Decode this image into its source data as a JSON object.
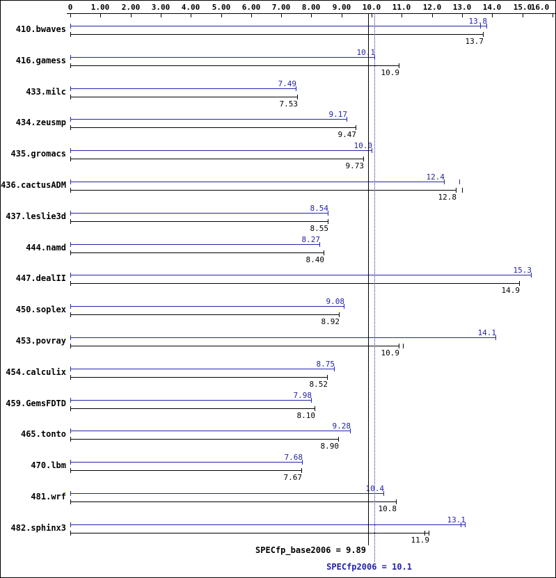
{
  "chart_data": {
    "type": "bar",
    "orientation": "horizontal",
    "title": "",
    "xlabel": "",
    "ylabel": "",
    "xlim": [
      0,
      16
    ],
    "grid": false,
    "series_colors": {
      "peak": "#2222aa",
      "base": "#000000"
    },
    "axis_ticks": [
      {
        "value": 0,
        "label": "0"
      },
      {
        "value": 1,
        "label": "1.00"
      },
      {
        "value": 2,
        "label": "2.00"
      },
      {
        "value": 3,
        "label": "3.00"
      },
      {
        "value": 4,
        "label": "4.00"
      },
      {
        "value": 5,
        "label": "5.00"
      },
      {
        "value": 6,
        "label": "6.00"
      },
      {
        "value": 7,
        "label": "7.00"
      },
      {
        "value": 8,
        "label": "8.00"
      },
      {
        "value": 9,
        "label": "9.00"
      },
      {
        "value": 10,
        "label": "10.0"
      },
      {
        "value": 11,
        "label": "11.0"
      },
      {
        "value": 12,
        "label": "12.0"
      },
      {
        "value": 13,
        "label": "13.0"
      },
      {
        "value": 14,
        "label": "14.0"
      },
      {
        "value": 15,
        "label": "15.0"
      },
      {
        "value": 16,
        "label": "16.0"
      }
    ],
    "benchmarks": [
      {
        "name": "410.bwaves",
        "peak": 13.8,
        "peak_label": "13.8",
        "base": 13.7,
        "base_label": "13.7",
        "peak_runs": [
          13.6
        ],
        "base_runs": []
      },
      {
        "name": "416.gamess",
        "peak": 10.1,
        "peak_label": "10.1",
        "base": 10.9,
        "base_label": "10.9",
        "peak_runs": [],
        "base_runs": []
      },
      {
        "name": "433.milc",
        "peak": 7.49,
        "peak_label": "7.49",
        "base": 7.53,
        "base_label": "7.53",
        "peak_runs": [],
        "base_runs": []
      },
      {
        "name": "434.zeusmp",
        "peak": 9.17,
        "peak_label": "9.17",
        "base": 9.47,
        "base_label": "9.47",
        "peak_runs": [],
        "base_runs": []
      },
      {
        "name": "435.gromacs",
        "peak": 10.0,
        "peak_label": "10.0",
        "base": 9.73,
        "base_label": "9.73",
        "peak_runs": [],
        "base_runs": []
      },
      {
        "name": "436.cactusADM",
        "peak": 12.4,
        "peak_label": "12.4",
        "base": 12.8,
        "base_label": "12.8",
        "peak_runs": [
          12.9
        ],
        "base_runs": [
          13.0
        ]
      },
      {
        "name": "437.leslie3d",
        "peak": 8.54,
        "peak_label": "8.54",
        "base": 8.55,
        "base_label": "8.55",
        "peak_runs": [],
        "base_runs": []
      },
      {
        "name": "444.namd",
        "peak": 8.27,
        "peak_label": "8.27",
        "base": 8.4,
        "base_label": "8.40",
        "peak_runs": [],
        "base_runs": []
      },
      {
        "name": "447.dealII",
        "peak": 15.3,
        "peak_label": "15.3",
        "base": 14.9,
        "base_label": "14.9",
        "peak_runs": [],
        "base_runs": []
      },
      {
        "name": "450.soplex",
        "peak": 9.08,
        "peak_label": "9.08",
        "base": 8.92,
        "base_label": "8.92",
        "peak_runs": [],
        "base_runs": []
      },
      {
        "name": "453.povray",
        "peak": 14.1,
        "peak_label": "14.1",
        "base": 10.9,
        "base_label": "10.9",
        "peak_runs": [],
        "base_runs": [
          11.05
        ]
      },
      {
        "name": "454.calculix",
        "peak": 8.75,
        "peak_label": "8.75",
        "base": 8.52,
        "base_label": "8.52",
        "peak_runs": [],
        "base_runs": []
      },
      {
        "name": "459.GemsFDTD",
        "peak": 7.98,
        "peak_label": "7.98",
        "base": 8.1,
        "base_label": "8.10",
        "peak_runs": [],
        "base_runs": []
      },
      {
        "name": "465.tonto",
        "peak": 9.28,
        "peak_label": "9.28",
        "base": 8.9,
        "base_label": "8.90",
        "peak_runs": [],
        "base_runs": []
      },
      {
        "name": "470.lbm",
        "peak": 7.68,
        "peak_label": "7.68",
        "base": 7.67,
        "base_label": "7.67",
        "peak_runs": [],
        "base_runs": []
      },
      {
        "name": "481.wrf",
        "peak": 10.4,
        "peak_label": "10.4",
        "base": 10.8,
        "base_label": "10.8",
        "peak_runs": [],
        "base_runs": []
      },
      {
        "name": "482.sphinx3",
        "peak": 13.1,
        "peak_label": "13.1",
        "base": 11.9,
        "base_label": "11.9",
        "peak_runs": [
          12.95
        ],
        "base_runs": [
          11.75
        ]
      }
    ],
    "means": {
      "base": {
        "label": "SPECfp_base2006 = 9.89",
        "value": 9.89
      },
      "peak": {
        "label": "SPECfp2006 = 10.1",
        "value": 10.1
      }
    }
  }
}
